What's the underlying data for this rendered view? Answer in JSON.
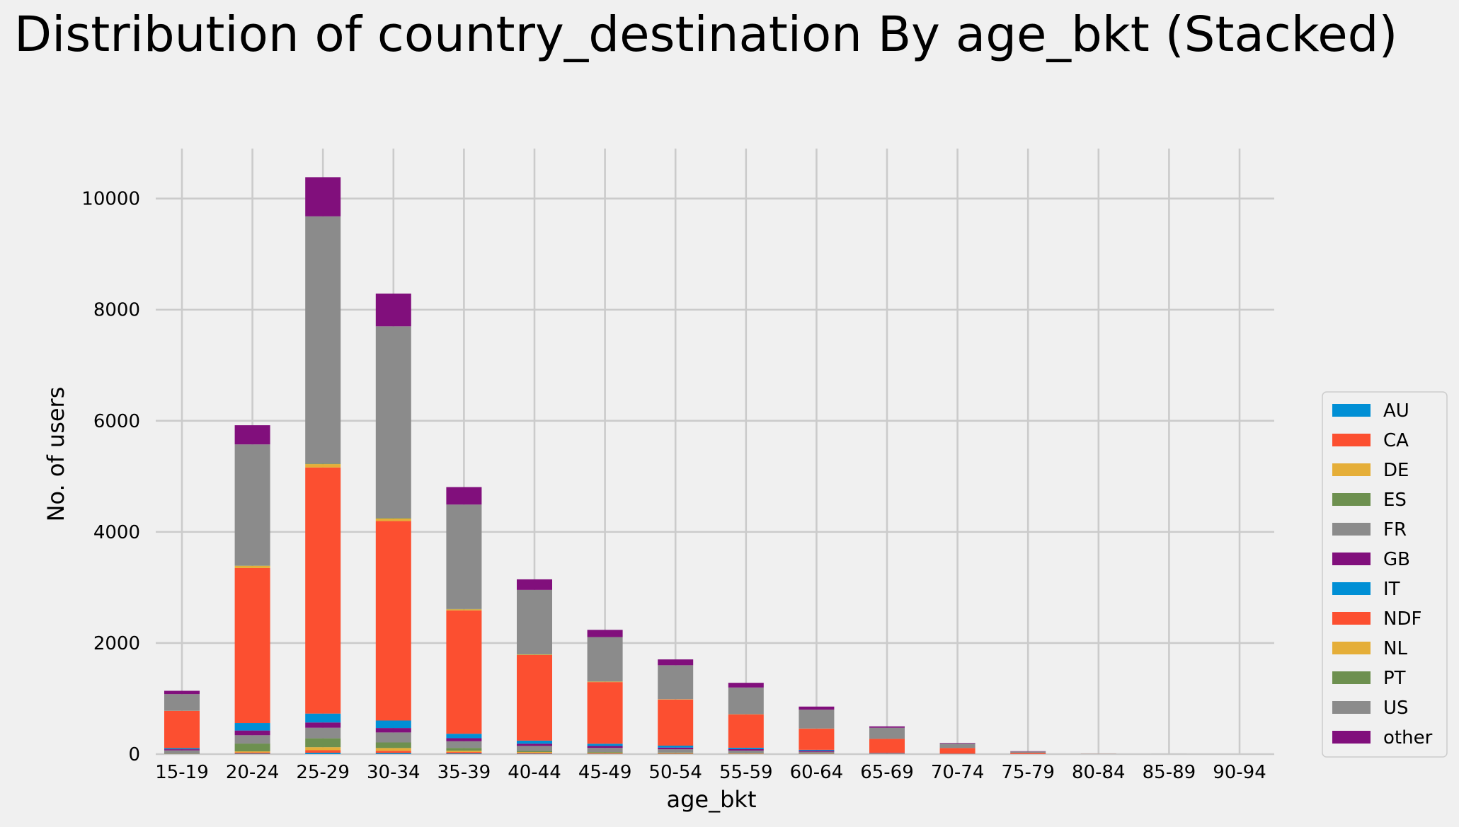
{
  "chart_data": {
    "type": "bar",
    "stacked": true,
    "title": "Distribution of country_destination By age_bkt (Stacked)",
    "xlabel": "age_bkt",
    "ylabel": "No. of users",
    "ylim": [
      0,
      10900
    ],
    "yticks": [
      0,
      2000,
      4000,
      6000,
      8000,
      10000
    ],
    "grid": true,
    "legend_position": "center-right",
    "categories": [
      "15-19",
      "20-24",
      "25-29",
      "30-34",
      "35-39",
      "40-44",
      "45-49",
      "50-54",
      "55-59",
      "60-64",
      "65-69",
      "70-74",
      "75-79",
      "80-84",
      "85-89",
      "90-94"
    ],
    "series": [
      {
        "name": "AU",
        "color": "#008fd5",
        "values": [
          0,
          10,
          25,
          20,
          12,
          8,
          5,
          4,
          3,
          2,
          1,
          0,
          0,
          0,
          0,
          0
        ]
      },
      {
        "name": "CA",
        "color": "#fc4f30",
        "values": [
          2,
          20,
          45,
          40,
          25,
          15,
          10,
          8,
          6,
          4,
          2,
          1,
          0,
          0,
          0,
          0
        ]
      },
      {
        "name": "DE",
        "color": "#e5ae38",
        "values": [
          1,
          20,
          55,
          50,
          25,
          15,
          10,
          8,
          6,
          4,
          2,
          1,
          0,
          0,
          0,
          0
        ]
      },
      {
        "name": "ES",
        "color": "#6d904f",
        "values": [
          5,
          140,
          160,
          100,
          50,
          20,
          12,
          8,
          5,
          3,
          1,
          0,
          0,
          0,
          0,
          0
        ]
      },
      {
        "name": "FR",
        "color": "#8b8b8b",
        "values": [
          60,
          150,
          190,
          180,
          120,
          90,
          75,
          60,
          45,
          30,
          10,
          5,
          2,
          0,
          0,
          0
        ]
      },
      {
        "name": "GB",
        "color": "#810f7c",
        "values": [
          20,
          85,
          95,
          80,
          55,
          40,
          35,
          30,
          25,
          20,
          5,
          2,
          1,
          0,
          0,
          0
        ]
      },
      {
        "name": "IT",
        "color": "#008fd5",
        "values": [
          20,
          135,
          160,
          135,
          80,
          55,
          40,
          35,
          25,
          15,
          3,
          1,
          0,
          0,
          0,
          0
        ]
      },
      {
        "name": "NDF",
        "color": "#fc4f30",
        "values": [
          670,
          2790,
          4430,
          3590,
          2220,
          1540,
          1110,
          830,
          600,
          380,
          250,
          100,
          20,
          2,
          0,
          0
        ]
      },
      {
        "name": "NL",
        "color": "#e5ae38",
        "values": [
          2,
          40,
          60,
          45,
          20,
          10,
          8,
          5,
          3,
          2,
          1,
          0,
          0,
          0,
          0,
          0
        ]
      },
      {
        "name": "PT",
        "color": "#6d904f",
        "values": [
          0,
          5,
          10,
          10,
          5,
          3,
          2,
          2,
          1,
          1,
          0,
          0,
          0,
          0,
          0,
          0
        ]
      },
      {
        "name": "US",
        "color": "#8b8b8b",
        "values": [
          300,
          2180,
          4450,
          3450,
          1880,
          1160,
          800,
          610,
          480,
          340,
          200,
          80,
          25,
          3,
          1,
          0
        ]
      },
      {
        "name": "other",
        "color": "#810f7c",
        "values": [
          60,
          345,
          705,
          590,
          315,
          190,
          130,
          105,
          85,
          55,
          25,
          10,
          5,
          0,
          0,
          0
        ]
      }
    ]
  }
}
